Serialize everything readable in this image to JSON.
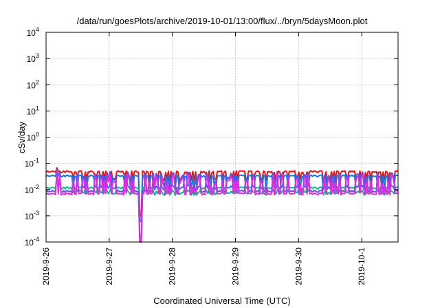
{
  "chart_data": {
    "type": "line",
    "title": "/data/run/goesPlots/archive/2019-10-01/13:00/flux/../bryn/5daysMoon.plot",
    "xlabel": "Coordinated Universal Time (UTC)",
    "ylabel": "cSv/day",
    "yscale": "log",
    "ylim": [
      0.0001,
      10000
    ],
    "xlim": [
      0,
      5.575
    ],
    "grid": true,
    "legend": "none",
    "x_unit": "days from 2019-9-26 00:00 UTC",
    "y_ticks": [
      {
        "base": "10",
        "exp": "-4",
        "value": 0.0001
      },
      {
        "base": "10",
        "exp": "-3",
        "value": 0.001
      },
      {
        "base": "10",
        "exp": "-2",
        "value": 0.01
      },
      {
        "base": "10",
        "exp": "-1",
        "value": 0.1
      },
      {
        "base": "10",
        "exp": "0",
        "value": 1
      },
      {
        "base": "10",
        "exp": "1",
        "value": 10
      },
      {
        "base": "10",
        "exp": "2",
        "value": 100
      },
      {
        "base": "10",
        "exp": "3",
        "value": 1000
      },
      {
        "base": "10",
        "exp": "4",
        "value": 10000
      }
    ],
    "x_ticks": [
      {
        "label": "2019-9-26",
        "value": 0
      },
      {
        "label": "2019-9-27",
        "value": 1
      },
      {
        "label": "2019-9-28",
        "value": 2
      },
      {
        "label": "2019-9-29",
        "value": 3
      },
      {
        "label": "2019-9-30",
        "value": 4
      },
      {
        "label": "2019-10-1",
        "value": 5
      }
    ],
    "series": [
      {
        "color": "#e8141a",
        "base": 0.048,
        "dip": 0.028,
        "spike": 0.068
      },
      {
        "color": "#1478e6",
        "base": 0.033,
        "dip": 0.012,
        "spike": 0.06
      },
      {
        "color": "#14b48c",
        "base": 0.0115,
        "dip": 0.0075,
        "spike": 0.03
      },
      {
        "color": "#5a50e0",
        "base": 0.0085,
        "dip": 0.006,
        "spike": 0.05
      },
      {
        "color": "#e628e6",
        "base": 0.0068,
        "dip": 0.0055,
        "spike": 0.055
      }
    ]
  }
}
